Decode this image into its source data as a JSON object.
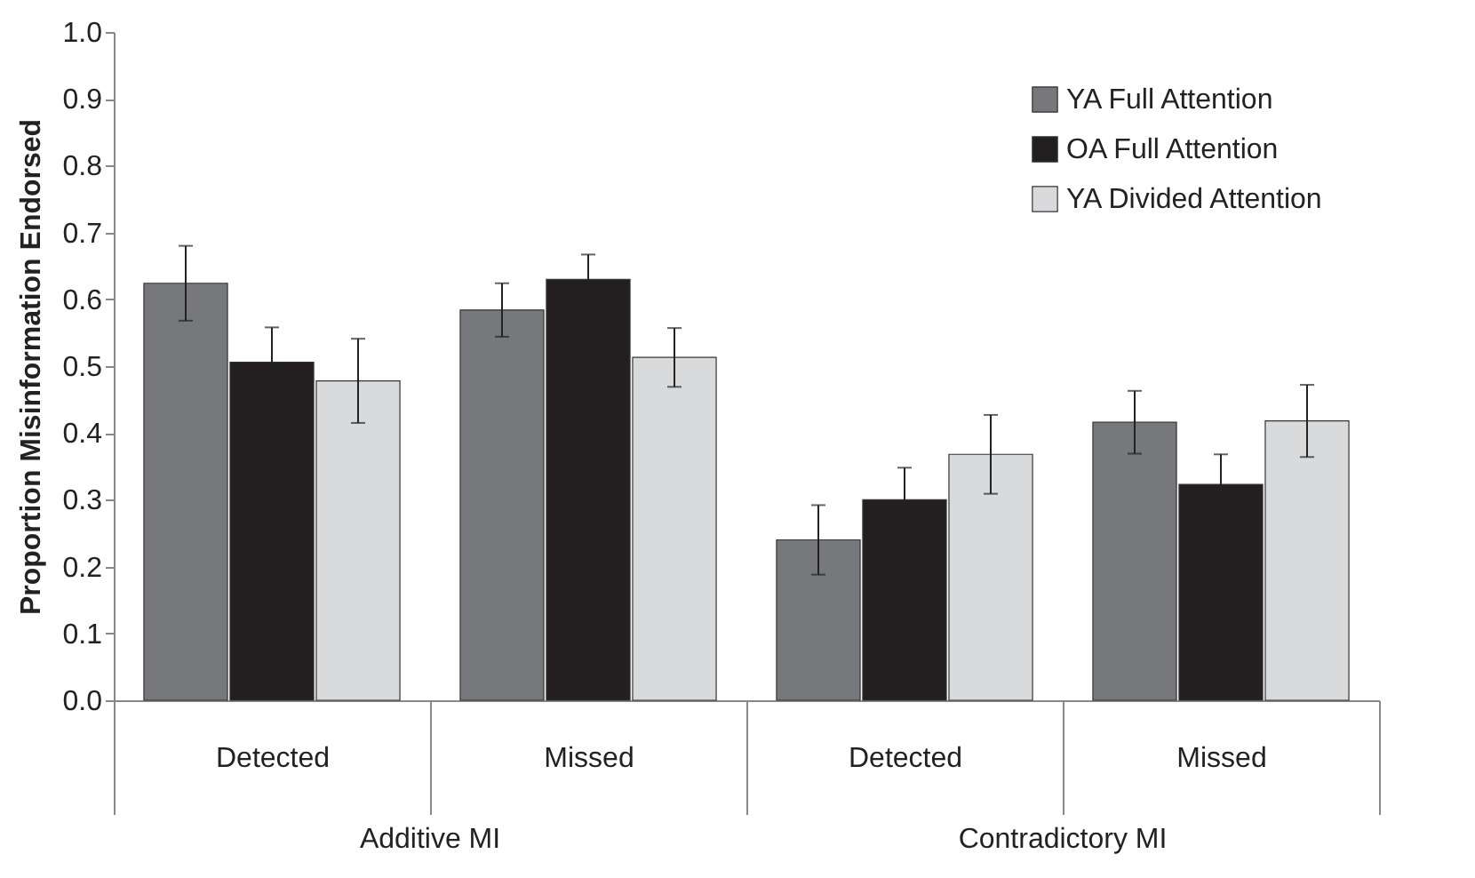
{
  "chart_data": {
    "type": "bar",
    "ylabel": "Proportion Misinformation Endorsed",
    "categories": [
      "Detected",
      "Missed",
      "Detected",
      "Missed"
    ],
    "annotations": [
      "Additive MI",
      "Contradictory MI"
    ],
    "series": [
      {
        "name": "YA Full Attention",
        "color": "#77787b",
        "values": [
          0.624,
          0.584,
          0.24,
          0.416
        ],
        "errors": [
          0.056,
          0.04,
          0.052,
          0.047
        ]
      },
      {
        "name": "OA Full Attention",
        "color": "#231f20",
        "values": [
          0.506,
          0.63,
          0.3,
          0.323
        ],
        "errors": [
          0.052,
          0.037,
          0.048,
          0.045
        ]
      },
      {
        "name": "YA Divided Attention",
        "color": "#d9dadb",
        "values": [
          0.478,
          0.513,
          0.368,
          0.418
        ],
        "errors": [
          0.063,
          0.044,
          0.059,
          0.054
        ]
      }
    ],
    "ylim": [
      0,
      1
    ],
    "yticks": [
      {
        "value": 0,
        "label": "0.0"
      },
      0.1,
      0.2,
      0.3,
      0.4,
      0.5,
      0.6,
      0.7,
      0.8,
      0.9,
      {
        "value": 1,
        "label": "1.0"
      }
    ],
    "grid": false,
    "legend": "top right"
  }
}
